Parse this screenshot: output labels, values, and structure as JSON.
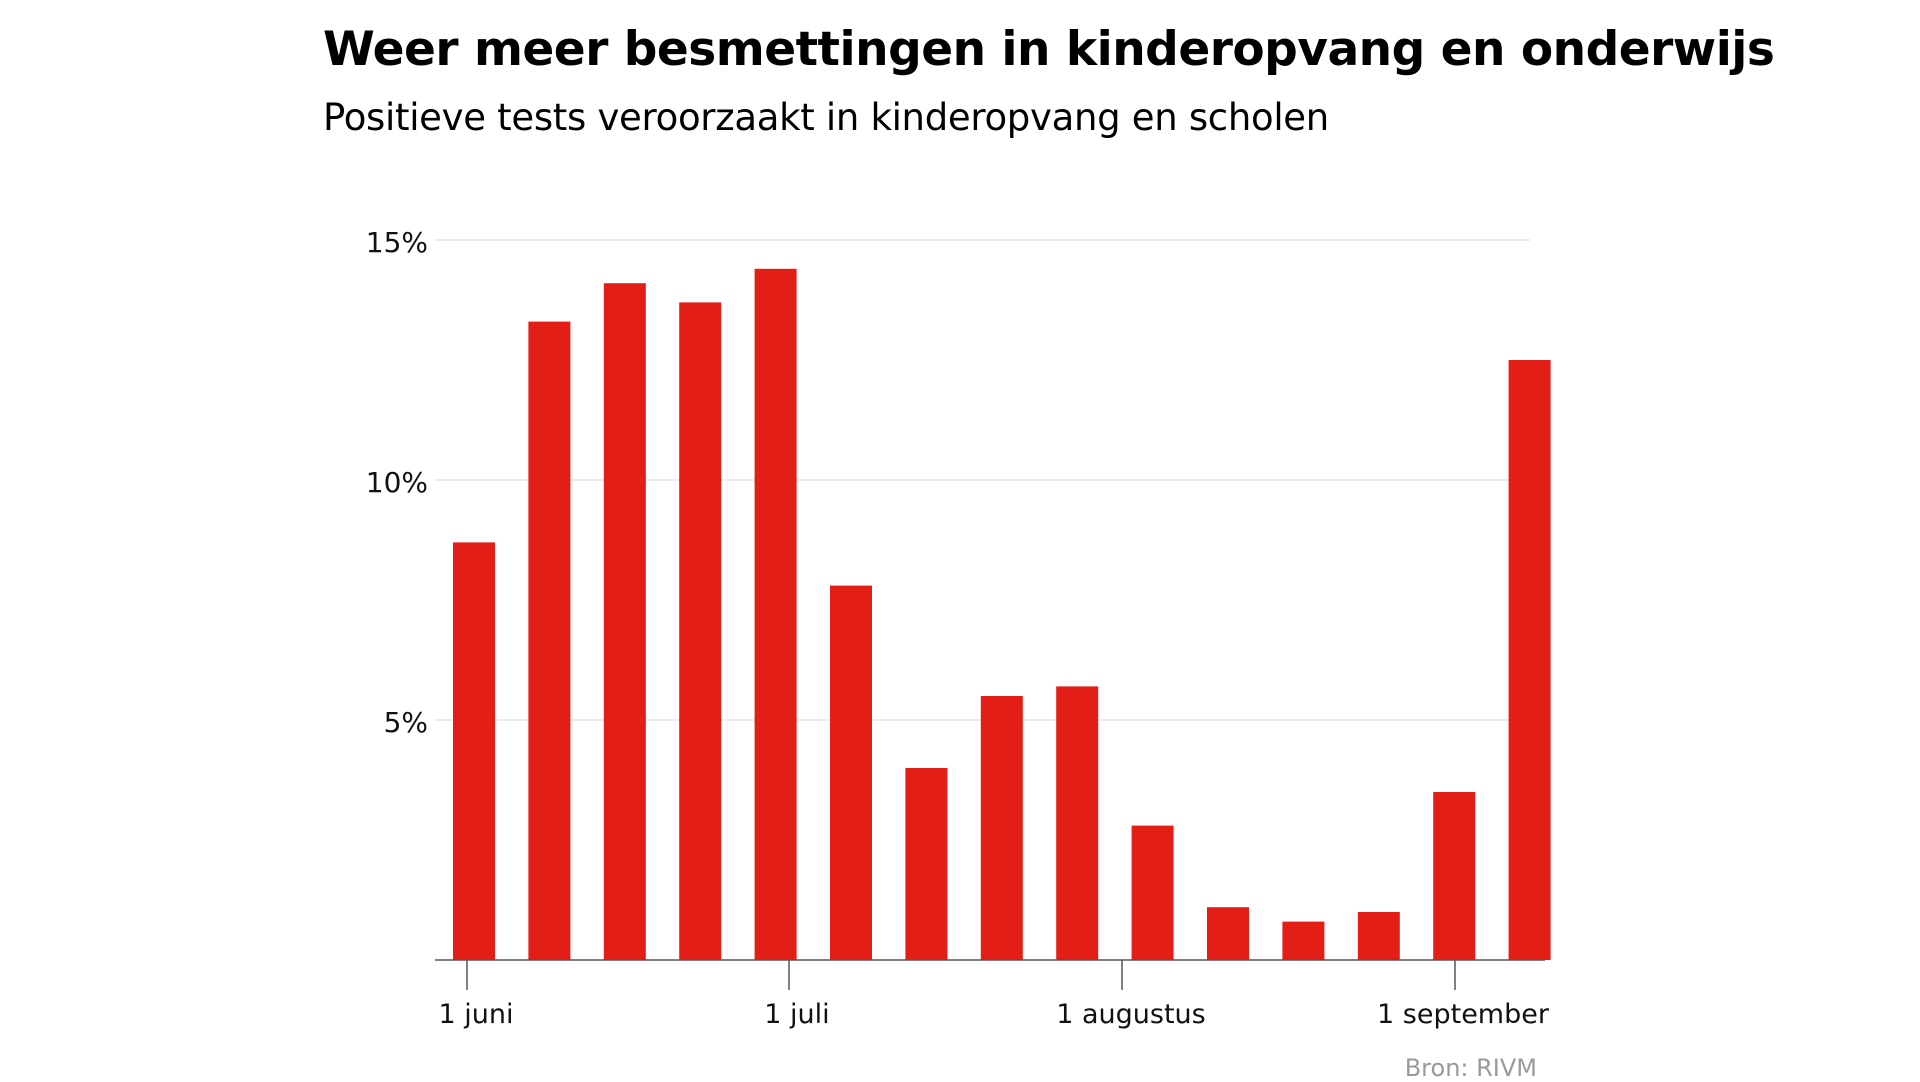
{
  "title": "Weer meer besmettingen in kinderopvang en onderwijs",
  "subtitle": "Positieve tests veroorzaakt in kinderopvang en scholen",
  "source": "Bron: RIVM",
  "colors": {
    "bar": "#e31e17",
    "grid": "#e6e6e6",
    "axis": "#555555",
    "source_text": "#9a9a9a"
  },
  "chart_data": {
    "type": "bar",
    "title": "Weer meer besmettingen in kinderopvang en onderwijs",
    "subtitle": "Positieve tests veroorzaakt in kinderopvang en scholen",
    "xlabel": "",
    "ylabel": "",
    "ylim": [
      0,
      15
    ],
    "yticks": [
      {
        "value": 5,
        "label": "5%"
      },
      {
        "value": 10,
        "label": "10%"
      },
      {
        "value": 15,
        "label": "15%"
      }
    ],
    "xtick_labels": [
      "1 juni",
      "1 juli",
      "1 augustus",
      "1 september"
    ],
    "grid": true,
    "legend": "none",
    "values": [
      8.7,
      13.3,
      14.1,
      13.7,
      14.4,
      7.8,
      4.0,
      5.5,
      5.7,
      2.8,
      1.1,
      0.8,
      1.0,
      3.5,
      12.5
    ]
  }
}
